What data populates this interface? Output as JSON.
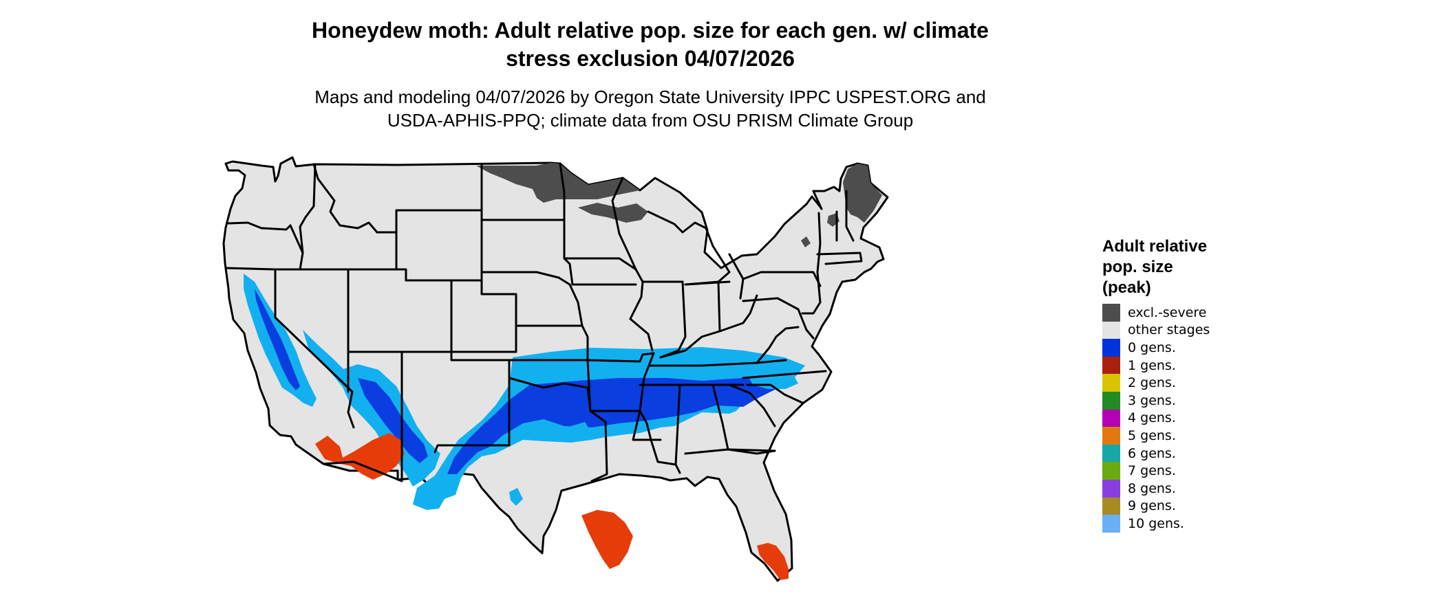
{
  "title": {
    "line1": "Honeydew moth: Adult relative pop. size for each gen. w/ climate",
    "line2": "stress exclusion 04/07/2026"
  },
  "subtitle": {
    "line1": "Maps and modeling 04/07/2026 by Oregon State University IPPC USPEST.ORG and",
    "line2": "USDA-APHIS-PPQ; climate data from OSU PRISM Climate Group"
  },
  "map": {
    "region": "Contiguous United States with state boundaries",
    "background_fill": "#e4e4e4",
    "boundary_color": "#000000"
  },
  "legend": {
    "title_lines": [
      "Adult relative",
      "pop. size",
      "(peak)"
    ],
    "items": [
      {
        "label": "excl.-severe",
        "color": "#4d4d4d"
      },
      {
        "label": "other stages",
        "color": "#e4e4e4"
      },
      {
        "label": "0 gens.",
        "color": "#0033dd"
      },
      {
        "label": "1 gens.",
        "color": "#aa2010"
      },
      {
        "label": "2 gens.",
        "color": "#d8c400"
      },
      {
        "label": "3 gens.",
        "color": "#228b22"
      },
      {
        "label": "4 gens.",
        "color": "#b300b3"
      },
      {
        "label": "5 gens.",
        "color": "#e07a10"
      },
      {
        "label": "6 gens.",
        "color": "#16a8a8"
      },
      {
        "label": "7 gens.",
        "color": "#6aaa10"
      },
      {
        "label": "8 gens.",
        "color": "#8a3ee0"
      },
      {
        "label": "9 gens.",
        "color": "#a88a22"
      },
      {
        "label": "10 gens.",
        "color": "#6ab0f5"
      }
    ]
  }
}
